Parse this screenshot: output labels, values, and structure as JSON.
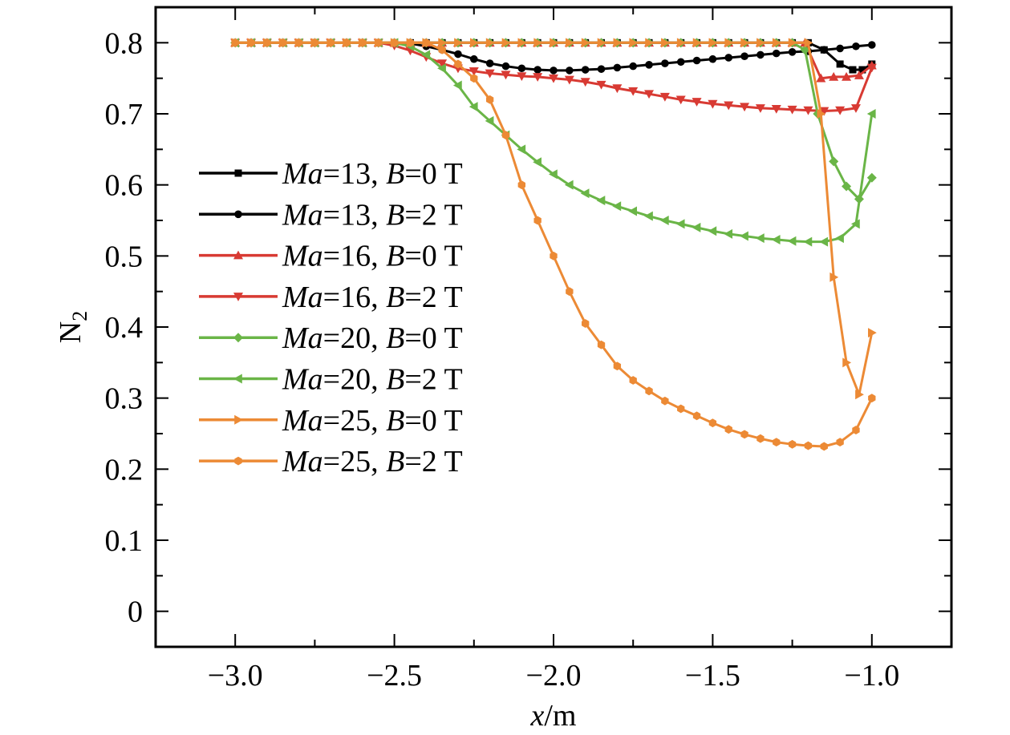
{
  "chart_data": {
    "type": "line",
    "title": "",
    "xlabel": {
      "var": "x",
      "unit": "/m"
    },
    "ylabel": {
      "base": "N",
      "sub": "2"
    },
    "xlim": [
      -3.25,
      -0.75
    ],
    "ylim": [
      -0.05,
      0.85
    ],
    "xticks": [
      -3.0,
      -2.5,
      -2.0,
      -1.5,
      -1.0
    ],
    "xtick_labels": [
      "−3.0",
      "−2.5",
      "−2.0",
      "−1.5",
      "−1.0"
    ],
    "yticks": [
      0,
      0.1,
      0.2,
      0.3,
      0.4,
      0.5,
      0.6,
      0.7,
      0.8
    ],
    "ytick_labels": [
      "0",
      "0.1",
      "0.2",
      "0.3",
      "0.4",
      "0.5",
      "0.6",
      "0.7",
      "0.8"
    ],
    "legend_position": "left-middle",
    "grid": false,
    "series": [
      {
        "legend": {
          "a": "Ma",
          "b": "=13, ",
          "c": "B",
          "d": "=0 T"
        },
        "color": "#000000",
        "marker": "square",
        "x": [
          -3.0,
          -2.95,
          -2.9,
          -2.85,
          -2.8,
          -2.75,
          -2.7,
          -2.65,
          -2.6,
          -2.55,
          -2.5,
          -2.45,
          -2.4,
          -2.35,
          -2.3,
          -2.25,
          -2.2,
          -2.15,
          -2.1,
          -2.05,
          -2.0,
          -1.95,
          -1.9,
          -1.85,
          -1.8,
          -1.75,
          -1.7,
          -1.65,
          -1.6,
          -1.55,
          -1.5,
          -1.45,
          -1.4,
          -1.35,
          -1.3,
          -1.25,
          -1.2,
          -1.15,
          -1.1,
          -1.06,
          -1.03,
          -1.0
        ],
        "y": [
          0.8,
          0.8,
          0.8,
          0.8,
          0.8,
          0.8,
          0.8,
          0.8,
          0.8,
          0.8,
          0.8,
          0.8,
          0.8,
          0.8,
          0.8,
          0.8,
          0.8,
          0.8,
          0.8,
          0.8,
          0.8,
          0.8,
          0.8,
          0.8,
          0.8,
          0.8,
          0.8,
          0.8,
          0.8,
          0.8,
          0.8,
          0.8,
          0.8,
          0.8,
          0.8,
          0.8,
          0.8,
          0.79,
          0.77,
          0.762,
          0.762,
          0.77
        ]
      },
      {
        "legend": {
          "a": "Ma",
          "b": "=13, ",
          "c": "B",
          "d": "=2 T"
        },
        "color": "#000000",
        "marker": "circle",
        "x": [
          -3.0,
          -2.95,
          -2.9,
          -2.85,
          -2.8,
          -2.75,
          -2.7,
          -2.65,
          -2.6,
          -2.55,
          -2.5,
          -2.45,
          -2.4,
          -2.35,
          -2.3,
          -2.25,
          -2.2,
          -2.15,
          -2.1,
          -2.05,
          -2.0,
          -1.95,
          -1.9,
          -1.85,
          -1.8,
          -1.75,
          -1.7,
          -1.65,
          -1.6,
          -1.55,
          -1.5,
          -1.45,
          -1.4,
          -1.35,
          -1.3,
          -1.25,
          -1.2,
          -1.15,
          -1.1,
          -1.05,
          -1.0
        ],
        "y": [
          0.8,
          0.8,
          0.8,
          0.8,
          0.8,
          0.8,
          0.8,
          0.8,
          0.8,
          0.8,
          0.8,
          0.799,
          0.795,
          0.79,
          0.784,
          0.777,
          0.771,
          0.767,
          0.764,
          0.762,
          0.761,
          0.761,
          0.762,
          0.763,
          0.765,
          0.767,
          0.769,
          0.771,
          0.773,
          0.775,
          0.777,
          0.779,
          0.781,
          0.783,
          0.785,
          0.787,
          0.788,
          0.79,
          0.792,
          0.795,
          0.797
        ]
      },
      {
        "legend": {
          "a": "Ma",
          "b": "=16, ",
          "c": "B",
          "d": "=0 T"
        },
        "color": "#d83a33",
        "marker": "triangle-up",
        "x": [
          -3.0,
          -2.95,
          -2.9,
          -2.85,
          -2.8,
          -2.75,
          -2.7,
          -2.65,
          -2.6,
          -2.55,
          -2.5,
          -2.45,
          -2.4,
          -2.35,
          -2.3,
          -2.25,
          -2.2,
          -2.15,
          -2.1,
          -2.05,
          -2.0,
          -1.95,
          -1.9,
          -1.85,
          -1.8,
          -1.75,
          -1.7,
          -1.65,
          -1.6,
          -1.55,
          -1.5,
          -1.45,
          -1.4,
          -1.35,
          -1.3,
          -1.25,
          -1.21,
          -1.16,
          -1.12,
          -1.08,
          -1.04,
          -1.0
        ],
        "y": [
          0.8,
          0.8,
          0.8,
          0.8,
          0.8,
          0.8,
          0.8,
          0.8,
          0.8,
          0.8,
          0.8,
          0.8,
          0.8,
          0.8,
          0.8,
          0.8,
          0.8,
          0.8,
          0.8,
          0.8,
          0.8,
          0.8,
          0.8,
          0.8,
          0.8,
          0.8,
          0.8,
          0.8,
          0.8,
          0.8,
          0.8,
          0.8,
          0.8,
          0.8,
          0.8,
          0.8,
          0.8,
          0.75,
          0.752,
          0.752,
          0.754,
          0.768
        ]
      },
      {
        "legend": {
          "a": "Ma",
          "b": "=16, ",
          "c": "B",
          "d": "=2 T"
        },
        "color": "#d83a33",
        "marker": "triangle-down",
        "x": [
          -3.0,
          -2.95,
          -2.9,
          -2.85,
          -2.8,
          -2.75,
          -2.7,
          -2.65,
          -2.6,
          -2.55,
          -2.5,
          -2.45,
          -2.4,
          -2.35,
          -2.3,
          -2.25,
          -2.2,
          -2.15,
          -2.1,
          -2.05,
          -2.0,
          -1.95,
          -1.9,
          -1.85,
          -1.8,
          -1.75,
          -1.7,
          -1.65,
          -1.6,
          -1.55,
          -1.5,
          -1.45,
          -1.4,
          -1.35,
          -1.3,
          -1.25,
          -1.2,
          -1.15,
          -1.1,
          -1.05,
          -1.0
        ],
        "y": [
          0.8,
          0.8,
          0.8,
          0.8,
          0.8,
          0.8,
          0.8,
          0.8,
          0.8,
          0.8,
          0.796,
          0.789,
          0.78,
          0.771,
          0.764,
          0.76,
          0.757,
          0.755,
          0.753,
          0.752,
          0.75,
          0.748,
          0.745,
          0.741,
          0.736,
          0.732,
          0.728,
          0.724,
          0.72,
          0.717,
          0.714,
          0.712,
          0.71,
          0.708,
          0.707,
          0.706,
          0.705,
          0.704,
          0.705,
          0.708,
          0.765
        ]
      },
      {
        "legend": {
          "a": "Ma",
          "b": "=20, ",
          "c": "B",
          "d": "=0 T"
        },
        "color": "#6ab547",
        "marker": "diamond",
        "x": [
          -3.0,
          -2.95,
          -2.9,
          -2.85,
          -2.8,
          -2.75,
          -2.7,
          -2.65,
          -2.6,
          -2.55,
          -2.5,
          -2.45,
          -2.4,
          -2.35,
          -2.3,
          -2.25,
          -2.2,
          -2.15,
          -2.1,
          -2.05,
          -2.0,
          -1.95,
          -1.9,
          -1.85,
          -1.8,
          -1.75,
          -1.7,
          -1.65,
          -1.6,
          -1.55,
          -1.5,
          -1.45,
          -1.4,
          -1.35,
          -1.3,
          -1.25,
          -1.21,
          -1.17,
          -1.12,
          -1.08,
          -1.04,
          -1.0
        ],
        "y": [
          0.8,
          0.8,
          0.8,
          0.8,
          0.8,
          0.8,
          0.8,
          0.8,
          0.8,
          0.8,
          0.8,
          0.8,
          0.8,
          0.8,
          0.8,
          0.8,
          0.8,
          0.8,
          0.8,
          0.8,
          0.8,
          0.8,
          0.8,
          0.8,
          0.8,
          0.8,
          0.8,
          0.8,
          0.8,
          0.8,
          0.8,
          0.8,
          0.8,
          0.8,
          0.8,
          0.8,
          0.79,
          0.7,
          0.633,
          0.598,
          0.58,
          0.61
        ]
      },
      {
        "legend": {
          "a": "Ma",
          "b": "=20, ",
          "c": "B",
          "d": "=2 T"
        },
        "color": "#6ab547",
        "marker": "triangle-left",
        "x": [
          -3.0,
          -2.95,
          -2.9,
          -2.85,
          -2.8,
          -2.75,
          -2.7,
          -2.65,
          -2.6,
          -2.55,
          -2.5,
          -2.45,
          -2.4,
          -2.35,
          -2.3,
          -2.25,
          -2.2,
          -2.15,
          -2.1,
          -2.05,
          -2.0,
          -1.95,
          -1.9,
          -1.85,
          -1.8,
          -1.75,
          -1.7,
          -1.65,
          -1.6,
          -1.55,
          -1.5,
          -1.45,
          -1.4,
          -1.35,
          -1.3,
          -1.25,
          -1.2,
          -1.15,
          -1.1,
          -1.05,
          -1.0
        ],
        "y": [
          0.8,
          0.8,
          0.8,
          0.8,
          0.8,
          0.8,
          0.8,
          0.8,
          0.8,
          0.8,
          0.8,
          0.795,
          0.783,
          0.764,
          0.74,
          0.71,
          0.69,
          0.67,
          0.65,
          0.632,
          0.615,
          0.6,
          0.588,
          0.578,
          0.57,
          0.563,
          0.556,
          0.55,
          0.545,
          0.54,
          0.535,
          0.531,
          0.528,
          0.525,
          0.523,
          0.521,
          0.52,
          0.52,
          0.525,
          0.545,
          0.7
        ]
      },
      {
        "legend": {
          "a": "Ma",
          "b": "=25, ",
          "c": "B",
          "d": "=0 T"
        },
        "color": "#ec8a35",
        "marker": "triangle-right",
        "x": [
          -3.0,
          -2.95,
          -2.9,
          -2.85,
          -2.8,
          -2.75,
          -2.7,
          -2.65,
          -2.6,
          -2.55,
          -2.5,
          -2.45,
          -2.4,
          -2.35,
          -2.3,
          -2.25,
          -2.2,
          -2.15,
          -2.1,
          -2.05,
          -2.0,
          -1.95,
          -1.9,
          -1.85,
          -1.8,
          -1.75,
          -1.7,
          -1.65,
          -1.6,
          -1.55,
          -1.5,
          -1.45,
          -1.4,
          -1.35,
          -1.3,
          -1.25,
          -1.2,
          -1.16,
          -1.12,
          -1.08,
          -1.04,
          -1.0
        ],
        "y": [
          0.8,
          0.8,
          0.8,
          0.8,
          0.8,
          0.8,
          0.8,
          0.8,
          0.8,
          0.8,
          0.8,
          0.8,
          0.8,
          0.8,
          0.8,
          0.8,
          0.8,
          0.8,
          0.8,
          0.8,
          0.8,
          0.8,
          0.8,
          0.8,
          0.8,
          0.8,
          0.8,
          0.8,
          0.8,
          0.8,
          0.8,
          0.8,
          0.8,
          0.8,
          0.8,
          0.8,
          0.8,
          0.7,
          0.47,
          0.35,
          0.305,
          0.392
        ]
      },
      {
        "legend": {
          "a": "Ma",
          "b": "=25, ",
          "c": "B",
          "d": "=2 T"
        },
        "color": "#ec8a35",
        "marker": "hexagon",
        "x": [
          -3.0,
          -2.95,
          -2.9,
          -2.85,
          -2.8,
          -2.75,
          -2.7,
          -2.65,
          -2.6,
          -2.55,
          -2.5,
          -2.45,
          -2.4,
          -2.35,
          -2.3,
          -2.25,
          -2.2,
          -2.15,
          -2.1,
          -2.05,
          -2.0,
          -1.95,
          -1.9,
          -1.85,
          -1.8,
          -1.75,
          -1.7,
          -1.65,
          -1.6,
          -1.55,
          -1.5,
          -1.45,
          -1.4,
          -1.35,
          -1.3,
          -1.25,
          -1.2,
          -1.15,
          -1.1,
          -1.05,
          -1.0
        ],
        "y": [
          0.8,
          0.8,
          0.8,
          0.8,
          0.8,
          0.8,
          0.8,
          0.8,
          0.8,
          0.8,
          0.8,
          0.8,
          0.8,
          0.79,
          0.77,
          0.75,
          0.72,
          0.67,
          0.6,
          0.55,
          0.5,
          0.45,
          0.405,
          0.375,
          0.345,
          0.325,
          0.31,
          0.296,
          0.285,
          0.275,
          0.265,
          0.256,
          0.249,
          0.243,
          0.238,
          0.235,
          0.233,
          0.232,
          0.238,
          0.255,
          0.3
        ]
      }
    ]
  }
}
